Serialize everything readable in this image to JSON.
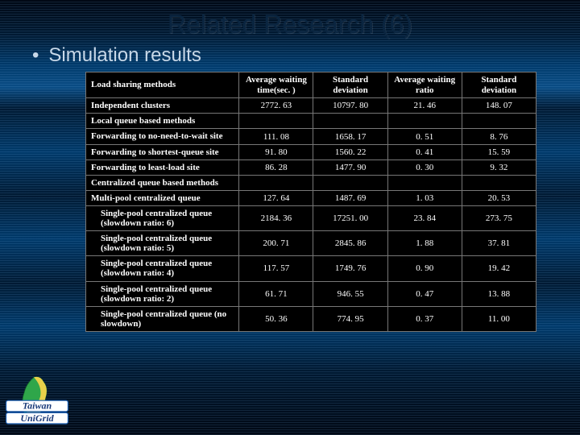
{
  "title": "Related Research (6)",
  "bullet": "Simulation results",
  "headers": {
    "method": "Load sharing methods",
    "avg_wait_time": "Average waiting time(sec. )",
    "std_dev_1": "Standard deviation",
    "avg_wait_ratio": "Average waiting ratio",
    "std_dev_2": "Standard deviation"
  },
  "rows": [
    {
      "type": "data",
      "method": "Independent clusters",
      "indent": false,
      "c1": "2772. 63",
      "c2": "10797. 80",
      "c3": "21. 46",
      "c4": "148. 07"
    },
    {
      "type": "section",
      "method": "Local queue based methods"
    },
    {
      "type": "data",
      "method": "Forwarding to no-need-to-wait site",
      "indent": false,
      "c1": "111. 08",
      "c2": "1658. 17",
      "c3": "0. 51",
      "c4": "8. 76"
    },
    {
      "type": "data",
      "method": "Forwarding to shortest-queue site",
      "indent": false,
      "c1": "91. 80",
      "c2": "1560. 22",
      "c3": "0. 41",
      "c4": "15. 59"
    },
    {
      "type": "data",
      "method": "Forwarding to least-load site",
      "indent": false,
      "c1": "86. 28",
      "c2": "1477. 90",
      "c3": "0. 30",
      "c4": "9. 32"
    },
    {
      "type": "section",
      "method": "Centralized queue based methods"
    },
    {
      "type": "data",
      "method": "Multi-pool centralized queue",
      "indent": false,
      "c1": "127. 64",
      "c2": "1487. 69",
      "c3": "1. 03",
      "c4": "20. 53"
    },
    {
      "type": "data",
      "method": "Single-pool centralized queue (slowdown ratio: 6)",
      "indent": true,
      "c1": "2184. 36",
      "c2": "17251. 00",
      "c3": "23. 84",
      "c4": "273. 75"
    },
    {
      "type": "data",
      "method": "Single-pool centralized queue (slowdown ratio: 5)",
      "indent": true,
      "c1": "200. 71",
      "c2": "2845. 86",
      "c3": "1. 88",
      "c4": "37. 81"
    },
    {
      "type": "data",
      "method": "Single-pool centralized queue (slowdown ratio: 4)",
      "indent": true,
      "c1": "117. 57",
      "c2": "1749. 76",
      "c3": "0. 90",
      "c4": "19. 42"
    },
    {
      "type": "data",
      "method": "Single-pool centralized queue (slowdown ratio: 2)",
      "indent": true,
      "c1": "61. 71",
      "c2": "946. 55",
      "c3": "0. 47",
      "c4": "13. 88"
    },
    {
      "type": "data",
      "method": "Single-pool centralized queue (no slowdown)",
      "indent": true,
      "c1": "50. 36",
      "c2": "774. 95",
      "c3": "0. 37",
      "c4": "11. 00"
    }
  ],
  "logo": {
    "top_text": "Taiwan",
    "bottom_text": "UniGrid"
  }
}
